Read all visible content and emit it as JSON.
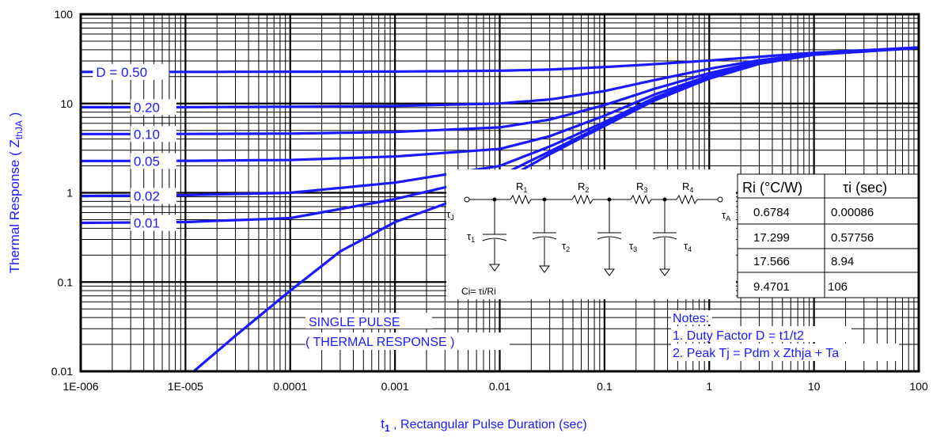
{
  "chart_data": {
    "type": "line",
    "xscale": "log",
    "yscale": "log",
    "xlim": [
      1e-06,
      100
    ],
    "ylim": [
      0.01,
      100
    ],
    "grid": true,
    "xlabel_pre": "t",
    "xlabel_sub": "1",
    "xlabel_post": " , Rectangular Pulse Duration (sec)",
    "ylabel_pre": "Thermal Response ( Z",
    "ylabel_sub": "thJA",
    "ylabel_post": " )",
    "x_tick_labels": [
      "1E-006",
      "1E-005",
      "0.0001",
      "0.001",
      "0.01",
      "0.1",
      "1",
      "10",
      "100"
    ],
    "y_tick_labels": [
      "0.01",
      "0.1",
      "1",
      "10",
      "100"
    ],
    "series": [
      {
        "name": "D = 0.50",
        "x": [
          1e-06,
          1e-05,
          0.0001,
          0.001,
          0.01,
          0.03,
          0.1,
          0.3,
          1,
          3,
          10,
          100
        ],
        "y": [
          22.6,
          22.6,
          22.7,
          22.8,
          23.3,
          24.0,
          25.6,
          27.6,
          30.3,
          33.4,
          37.0,
          42.5
        ]
      },
      {
        "name": "0.20",
        "x": [
          1e-06,
          1e-05,
          0.0001,
          0.001,
          0.01,
          0.03,
          0.1,
          0.3,
          1,
          3,
          10,
          100
        ],
        "y": [
          9.1,
          9.1,
          9.2,
          9.4,
          10.0,
          11.1,
          13.8,
          18.3,
          24.5,
          30.5,
          36.0,
          42.3
        ]
      },
      {
        "name": "0.10",
        "x": [
          1e-06,
          1e-05,
          0.0001,
          0.001,
          0.01,
          0.03,
          0.1,
          0.3,
          1,
          3,
          10,
          100
        ],
        "y": [
          4.55,
          4.56,
          4.6,
          4.8,
          5.4,
          6.6,
          9.6,
          14.6,
          21.9,
          29.4,
          35.8,
          42.2
        ]
      },
      {
        "name": "0.05",
        "x": [
          1e-06,
          1e-05,
          0.0001,
          0.001,
          0.01,
          0.03,
          0.1,
          0.3,
          1,
          3,
          10,
          100
        ],
        "y": [
          2.27,
          2.28,
          2.33,
          2.55,
          3.1,
          4.3,
          7.3,
          12.6,
          20.5,
          28.7,
          35.6,
          42.1
        ]
      },
      {
        "name": "0.02",
        "x": [
          1e-06,
          1e-05,
          0.0001,
          0.001,
          0.003,
          0.01,
          0.03,
          0.1,
          0.3,
          1,
          3,
          10,
          100
        ],
        "y": [
          0.92,
          0.94,
          1.0,
          1.3,
          1.6,
          2.0,
          3.3,
          6.2,
          11.6,
          19.7,
          28.2,
          35.4,
          42.0
        ]
      },
      {
        "name": "0.01",
        "x": [
          1e-06,
          1e-05,
          0.0001,
          0.001,
          0.003,
          0.01,
          0.03,
          0.1,
          0.3,
          1,
          3,
          10,
          100
        ],
        "y": [
          0.46,
          0.47,
          0.52,
          0.85,
          1.15,
          1.55,
          2.9,
          5.8,
          11.1,
          19.3,
          28.0,
          35.3,
          42.0
        ]
      },
      {
        "name": "SINGLE PULSE",
        "x": [
          1.2e-05,
          3e-05,
          0.0001,
          0.0003,
          0.001,
          0.003,
          0.01,
          0.03,
          0.1,
          0.3,
          1,
          3,
          10,
          100
        ],
        "y": [
          0.01,
          0.025,
          0.08,
          0.22,
          0.47,
          0.75,
          1.3,
          2.7,
          5.6,
          10.8,
          19.0,
          27.8,
          35.2,
          41.9
        ]
      }
    ],
    "annotations": {
      "single_pulse_line1": "SINGLE PULSE",
      "single_pulse_line2": "( THERMAL RESPONSE )",
      "notes_title": "Notes:",
      "note1": "1. Duty Factor D = t1/t2",
      "note2": "2. Peak Tj = Pdm x Zthja + Ta"
    },
    "table": {
      "headers": [
        "Ri (°C/W)",
        "τi (sec)"
      ],
      "rows": [
        [
          "0.6784",
          "0.00086"
        ],
        [
          "17.299",
          "0.57756"
        ],
        [
          "17.566",
          "8.94"
        ],
        [
          "9.4701",
          "106"
        ]
      ]
    },
    "circuit": {
      "tau_j": "τ",
      "tau_j_sub": "J",
      "tau_a": "τ",
      "tau_a_sub": "A",
      "resistors": [
        "R",
        "R",
        "R",
        "R"
      ],
      "resistor_subs": [
        "1",
        "2",
        "3",
        "4"
      ],
      "taus": [
        "τ",
        "τ",
        "τ",
        "τ"
      ],
      "tau_subs": [
        "1",
        "2",
        "3",
        "4"
      ],
      "ci_label": "Ci= τi/Ri"
    },
    "colors": {
      "curve": "#1a1aff",
      "text_blue": "#1a1aff",
      "grid": "#000000"
    }
  }
}
